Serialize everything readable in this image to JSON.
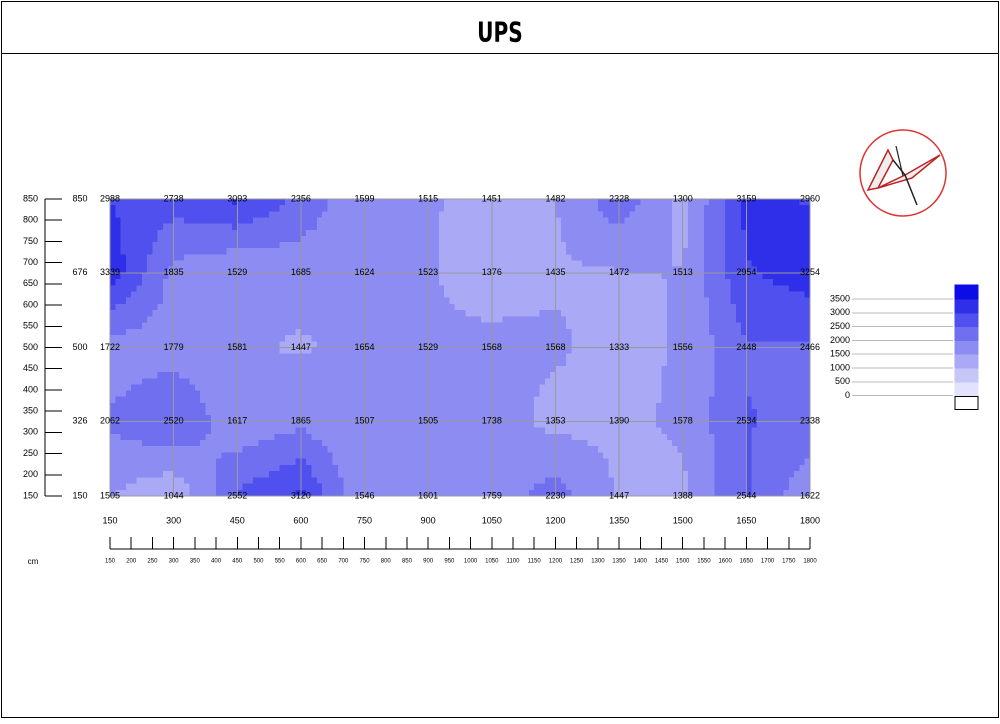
{
  "header": {
    "title": "UPS"
  },
  "chart_data": {
    "type": "contour",
    "x": [
      150,
      300,
      450,
      600,
      750,
      900,
      1050,
      1200,
      1350,
      1500,
      1650,
      1800
    ],
    "y": [
      850,
      676,
      500,
      326,
      150
    ],
    "z": [
      [
        2988,
        2738,
        3093,
        2356,
        1599,
        1515,
        1451,
        1482,
        2328,
        1300,
        3159,
        2960
      ],
      [
        3339,
        1835,
        1529,
        1685,
        1624,
        1523,
        1376,
        1435,
        1472,
        1513,
        2954,
        3254
      ],
      [
        1722,
        1779,
        1581,
        1447,
        1654,
        1529,
        1568,
        1568,
        1333,
        1556,
        2448,
        2466
      ],
      [
        2062,
        2520,
        1617,
        1865,
        1507,
        1505,
        1738,
        1353,
        1390,
        1578,
        2534,
        2338
      ],
      [
        1505,
        1044,
        2552,
        3120,
        1546,
        1601,
        1759,
        2230,
        1447,
        1388,
        2544,
        1622
      ]
    ],
    "xlim": [
      150,
      1800
    ],
    "ylim": [
      150,
      850
    ],
    "xticks": [
      150,
      200,
      250,
      300,
      350,
      400,
      450,
      500,
      550,
      600,
      650,
      700,
      750,
      800,
      850,
      900,
      950,
      1000,
      1050,
      1100,
      1150,
      1200,
      1250,
      1300,
      1350,
      1400,
      1450,
      1500,
      1550,
      1600,
      1650,
      1700,
      1750,
      1800
    ],
    "yticks": [
      150,
      200,
      250,
      300,
      350,
      400,
      450,
      500,
      550,
      600,
      650,
      700,
      750,
      800,
      850
    ],
    "x_unit": "cm",
    "levels": [
      0,
      500,
      1000,
      1500,
      2000,
      2500,
      3000,
      3500
    ],
    "colors": [
      "#ffffff",
      "#e2e2fc",
      "#c6c6f9",
      "#a9a9f6",
      "#8c8cf3",
      "#6f6ff0",
      "#5050ee",
      "#2f2fea",
      "#0c0ce6"
    ],
    "grid": true
  }
}
